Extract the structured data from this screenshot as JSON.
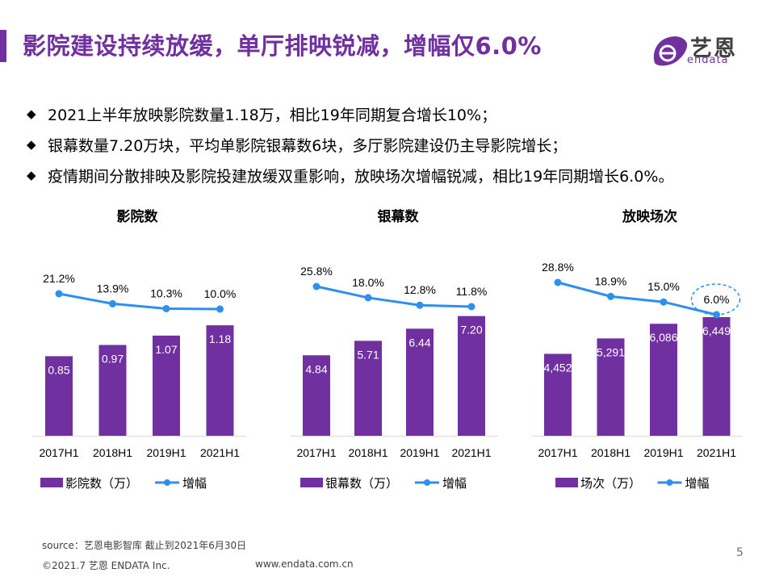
{
  "header": {
    "title": "影院建设持续放缓，单厅排映锐减，增幅仅6.0%",
    "logo_cn": "艺恩",
    "logo_en": "endata"
  },
  "bullets": [
    "2021上半年放映影院数量1.18万，相比19年同期复合增长10%；",
    "银幕数量7.20万块，平均单影院银幕数6块，多厅影院建设仍主导影院增长；",
    "疫情期间分散排映及影院投建放缓双重影响，放映场次增幅锐减，相比19年同期增长6.0%。"
  ],
  "bullet_marker": "◆",
  "colors": {
    "brand": "#7030a0",
    "bar": "#7030a0",
    "line": "#2e8ff0"
  },
  "chart_data": [
    {
      "type": "bar",
      "title": "影院数",
      "categories": [
        "2017H1",
        "2018H1",
        "2019H1",
        "2021H1"
      ],
      "series": [
        {
          "name": "影院数（万）",
          "type": "bar",
          "values": [
            0.85,
            0.97,
            1.07,
            1.18
          ],
          "labels": [
            "0.85",
            "0.97",
            "1.07",
            "1.18"
          ]
        },
        {
          "name": "增幅",
          "type": "line",
          "values": [
            21.2,
            13.9,
            10.3,
            10.0
          ],
          "labels": [
            "21.2%",
            "13.9%",
            "10.3%",
            "10.0%"
          ]
        }
      ],
      "legend": "bottom",
      "grid": false,
      "highlight": null
    },
    {
      "type": "bar",
      "title": "银幕数",
      "categories": [
        "2017H1",
        "2018H1",
        "2019H1",
        "2021H1"
      ],
      "series": [
        {
          "name": "银幕数（万）",
          "type": "bar",
          "values": [
            4.84,
            5.71,
            6.44,
            7.2
          ],
          "labels": [
            "4.84",
            "5.71",
            "6.44",
            "7.20"
          ]
        },
        {
          "name": "增幅",
          "type": "line",
          "values": [
            25.8,
            18.0,
            12.8,
            11.8
          ],
          "labels": [
            "25.8%",
            "18.0%",
            "12.8%",
            "11.8%"
          ]
        }
      ],
      "legend": "bottom",
      "grid": false,
      "highlight": null
    },
    {
      "type": "bar",
      "title": "放映场次",
      "categories": [
        "2017H1",
        "2018H1",
        "2019H1",
        "2021H1"
      ],
      "series": [
        {
          "name": "场次（万）",
          "type": "bar",
          "values": [
            4452,
            5291,
            6086,
            6449
          ],
          "labels": [
            "4,452",
            "5,291",
            "6,086",
            "6,449"
          ]
        },
        {
          "name": "增幅",
          "type": "line",
          "values": [
            28.8,
            18.9,
            15.0,
            6.0
          ],
          "labels": [
            "28.8%",
            "18.9%",
            "15.0%",
            "6.0%"
          ]
        }
      ],
      "legend": "bottom",
      "grid": false,
      "highlight": "2021H1 增幅 (dashed circle)"
    }
  ],
  "footer": {
    "source": "source：艺恩电影智库      截止到2021年6月30日",
    "copyright": "©2021.7 艺恩 ENDATA Inc.",
    "url": "www.endata.com.cn",
    "page_number": "5"
  }
}
